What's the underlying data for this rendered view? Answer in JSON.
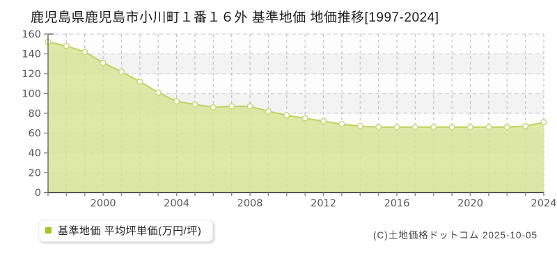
{
  "title": "鹿児島県鹿児島市小川町１番１６外 基準地価 地価推移[1997-2024]",
  "legend": {
    "marker_color": "#a3c620",
    "label": "基準地価 平均坪単価(万円/坪)"
  },
  "footer": {
    "copyright": "(C)土地価格ドットコム 2025-10-05"
  },
  "chart_data": {
    "type": "area",
    "title": "鹿児島県鹿児島市小川町１番１６外 基準地価 地価推移[1997-2024]",
    "series_name": "基準地価 平均坪単価(万円/坪)",
    "x": [
      1997,
      1998,
      1999,
      2000,
      2001,
      2002,
      2003,
      2004,
      2005,
      2006,
      2007,
      2008,
      2009,
      2010,
      2011,
      2012,
      2013,
      2014,
      2015,
      2016,
      2017,
      2018,
      2019,
      2020,
      2021,
      2022,
      2023,
      2024
    ],
    "values": [
      152,
      148,
      142,
      131,
      122,
      112,
      101,
      92,
      89,
      86,
      87,
      87,
      82,
      78,
      75,
      72,
      69,
      67,
      66,
      66,
      66,
      66,
      66,
      66,
      66,
      66,
      67,
      71
    ],
    "ylabel": "",
    "xlabel": "",
    "ylim": [
      0,
      160
    ],
    "ytick_step": 20,
    "xtick_labels": [
      "2000",
      "2004",
      "2008",
      "2012",
      "2016",
      "2020",
      "2024"
    ],
    "xtick_years": [
      2000,
      2004,
      2008,
      2012,
      2016,
      2020,
      2024
    ],
    "grid": true,
    "legend_position": "bottom-left",
    "colors": {
      "fill": "#d8e494",
      "line": "#bcd45a",
      "marker_fill": "#ffffff",
      "marker_stroke": "#c6da7a",
      "grid_h": "#dadada",
      "grid_v": "#c2c2c2",
      "axis_y": "#777777",
      "axis_x": "#555555",
      "tick": "#888888",
      "band_light": "#fdfdfd",
      "band_dark": "#f3f3f3",
      "tick_label": "#555555"
    }
  }
}
